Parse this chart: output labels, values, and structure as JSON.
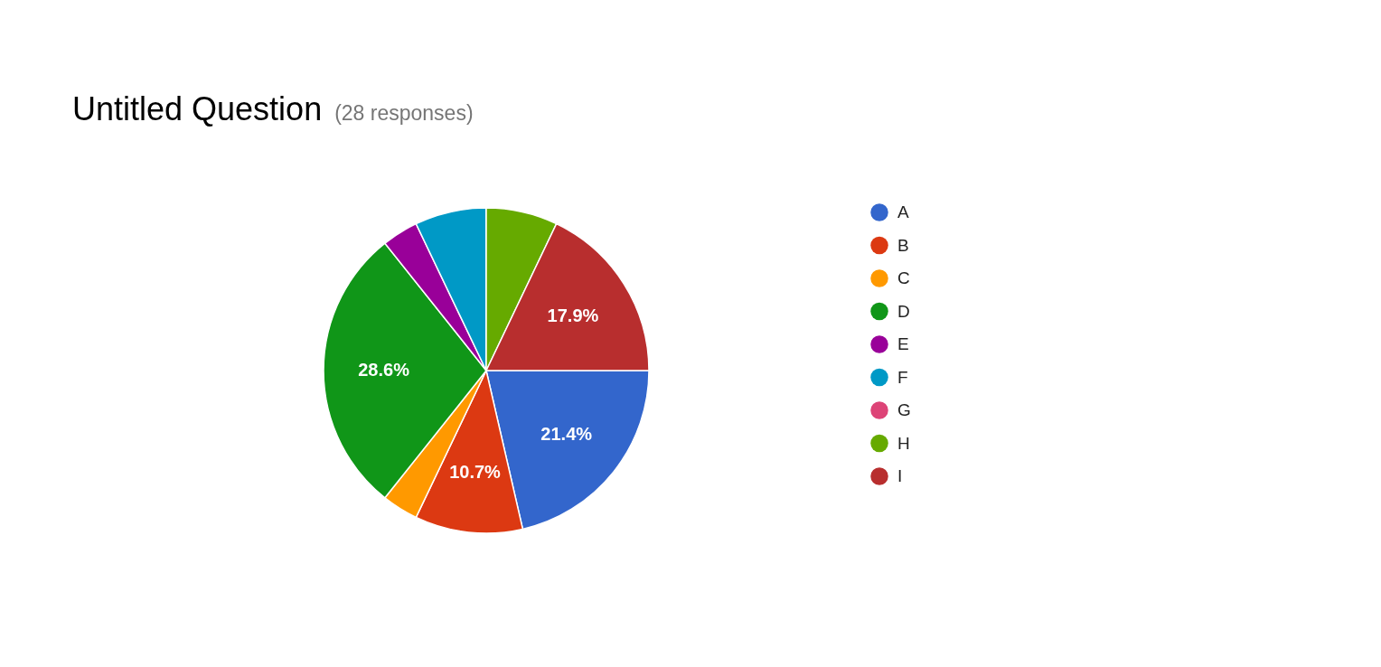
{
  "chart_data": {
    "type": "pie",
    "title": "Untitled Question",
    "subtitle": "(28 responses)",
    "categories": [
      "A",
      "B",
      "C",
      "D",
      "E",
      "F",
      "G",
      "H",
      "I"
    ],
    "values": [
      21.4,
      10.7,
      3.6,
      28.6,
      3.6,
      7.1,
      0,
      7.1,
      17.9
    ],
    "value_labels": [
      "21.4%",
      "10.7%",
      null,
      "28.6%",
      null,
      null,
      null,
      null,
      "17.9%"
    ],
    "colors": [
      "#3366cc",
      "#dc3912",
      "#ff9900",
      "#109618",
      "#990099",
      "#0099c6",
      "#dd4477",
      "#66aa00",
      "#b82e2e"
    ],
    "legend": "right"
  }
}
